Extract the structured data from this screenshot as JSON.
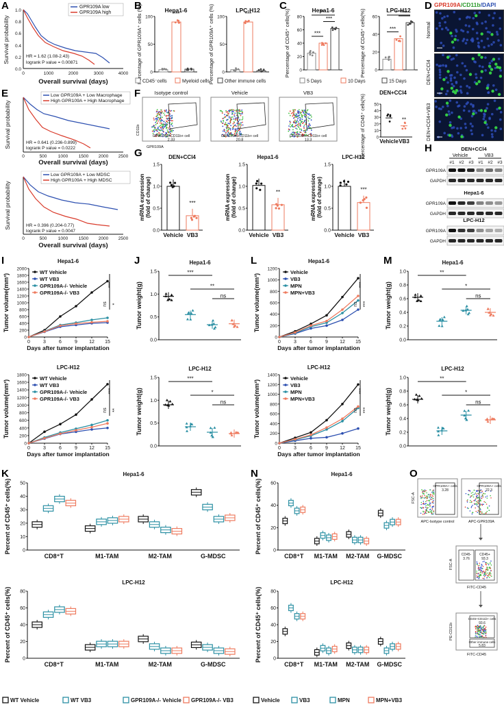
{
  "figure": {
    "panel_labels": [
      "A",
      "B",
      "C",
      "D",
      "E",
      "F",
      "G",
      "H",
      "I",
      "J",
      "L",
      "M",
      "K",
      "N",
      "O"
    ]
  },
  "panelA": {
    "legend": [
      "GPR109A low",
      "GPR109A high"
    ],
    "ylabel": "Survival probability",
    "xlabel": "Overall survival (days)",
    "hr": "HR = 1.62 (1.08-2.43)",
    "logrank": "logrank P value = 0.00871",
    "xticks": [
      "0",
      "1000",
      "2000",
      "3000",
      "4000"
    ],
    "yticks": [
      "0.0",
      "0.2",
      "0.4",
      "0.6",
      "0.8",
      "1.0"
    ]
  },
  "panelB": {
    "charts": [
      {
        "title": "Hepa1-6",
        "ylabel": "Percentage of GPR109A⁺ cells (%)",
        "values": [
          4,
          90,
          5
        ],
        "sig": "***",
        "yticks": [
          "0",
          "50",
          "100"
        ]
      },
      {
        "title": "LPC-H12",
        "ylabel": "Percentage of GPR109A⁺ cells (%)",
        "values": [
          4,
          90,
          2
        ],
        "sig": "***",
        "yticks": [
          "0",
          "50",
          "100"
        ]
      }
    ],
    "legend": [
      "CD45⁻cells",
      "Myeloid cells",
      "Other immune cells"
    ]
  },
  "panelC": {
    "charts": [
      {
        "title": "Hepa1-6",
        "ylabel": "Percentage of CD45⁺ cells(%)",
        "values": [
          25,
          40,
          62
        ],
        "sig": [
          "***",
          "***",
          "***"
        ],
        "yticks": [
          "0",
          "20",
          "40",
          "60",
          "80"
        ]
      },
      {
        "title": "LPC-H12",
        "ylabel": "Percentage of CD45⁺ cells(%)",
        "values": [
          12,
          35,
          53
        ],
        "sig": [
          "***",
          "***",
          "***"
        ],
        "yticks": [
          "0",
          "20",
          "40",
          "60"
        ]
      }
    ],
    "legend": [
      "5 Days",
      "10 Days",
      "15 Days"
    ]
  },
  "panelD": {
    "title": "GPR109A/CD11b/DAPI",
    "title_parts": [
      "GPR109A",
      "/CD11b",
      "/DAPI"
    ],
    "rows": [
      "Normal",
      "DEN+CCl4",
      "DEN+CCl4+VB3"
    ]
  },
  "panelE": {
    "top": {
      "legend": [
        "Low GPR109A + Low Macrophage",
        "High GPR109A + High Macrophage"
      ],
      "hr": "HR = 0.641 (0.236-0.899)",
      "logrank": "logrank P value = 0.0222"
    },
    "bottom": {
      "legend": [
        "Low GPR109A + Low MDSC",
        "High GPR109A + High MDSC"
      ],
      "hr": "HR = 0.396 (0.204-0.77)",
      "logrank": "logrank P value = 0.0047"
    },
    "ylabel": "Survival probability",
    "xlabel": "Overall survival (days)",
    "xticks": [
      "0",
      "500",
      "1000",
      "1500",
      "2000",
      "2500"
    ]
  },
  "panelF": {
    "plots": [
      {
        "title": "Isotype control",
        "gate": "GPR109A+CD11b+ cell",
        "value": "2.33"
      },
      {
        "title": "Vehicle",
        "gate": "GPR109A+CD11b+ cell",
        "value": "20.8"
      },
      {
        "title": "VB3",
        "gate": "GPR109A+CD11b+ cell",
        "value": "13.3"
      }
    ],
    "yaxis": "CD11b",
    "xaxis": "GPR109A",
    "bar": {
      "title": "DEN+CCl4",
      "ylabel": "Percentage of CD45⁺ cells(%)",
      "categories": [
        "Vehicle",
        "VB3"
      ],
      "values": [
        29,
        17
      ],
      "sig": "**",
      "yticks": [
        "0",
        "10",
        "20",
        "30",
        "40",
        "50"
      ]
    }
  },
  "panelG": {
    "charts": [
      {
        "title": "DEN+CCl4",
        "values": [
          1.0,
          0.33
        ],
        "sig": "***",
        "yticks": [
          "0.0",
          "0.5",
          "1.0",
          "1.5"
        ]
      },
      {
        "title": "Hepa1-6",
        "values": [
          1.02,
          0.58
        ],
        "sig": "**",
        "yticks": [
          "0.0",
          "0.5",
          "1.0",
          "1.5"
        ]
      },
      {
        "title": "LPC-H12",
        "values": [
          1.0,
          0.63
        ],
        "sig": "***",
        "yticks": [
          "0.0",
          "0.5",
          "1.0",
          "1.5"
        ]
      }
    ],
    "ylabel": "mRNA expression (fold of change)",
    "categories": [
      "Vehicle",
      "VB3"
    ]
  },
  "panelH": {
    "header": "DEN+CCl4",
    "groups": [
      "Vehicle",
      "VB3"
    ],
    "lanes": [
      "#1",
      "#2",
      "#3",
      "#1",
      "#2",
      "#3"
    ],
    "sections": [
      "",
      "Hepa1-6",
      "LPC-H12"
    ],
    "proteins": [
      "GPR109A",
      "GAPDH"
    ]
  },
  "panelI": {
    "charts": [
      {
        "title": "Hepa1-6",
        "series": [
          {
            "name": "WT Vehicle",
            "values": [
              0,
              200,
              600,
              900,
              1300,
              1630
            ]
          },
          {
            "name": "WT VB3",
            "values": [
              0,
              150,
              300,
              350,
              400,
              420
            ]
          },
          {
            "name": "GPR109A-/- Vehicle",
            "values": [
              0,
              170,
              350,
              420,
              500,
              560
            ]
          },
          {
            "name": "GPR109A-/- VB3",
            "values": [
              0,
              160,
              330,
              390,
              430,
              460
            ]
          }
        ],
        "sig": [
          "***",
          "ns",
          "*"
        ],
        "yticks": [
          "0",
          "200",
          "400",
          "600",
          "800",
          "1000",
          "1200",
          "1400",
          "1600",
          "1800",
          "2000"
        ],
        "ymax": 2000
      },
      {
        "title": "LPC-H12",
        "series": [
          {
            "name": "WT Vehicle",
            "values": [
              0,
              300,
              500,
              750,
              1150,
              1550
            ]
          },
          {
            "name": "WT VB3",
            "values": [
              0,
              120,
              240,
              300,
              360,
              400
            ]
          },
          {
            "name": "GPR109A-/- Vehicle",
            "values": [
              0,
              150,
              280,
              380,
              480,
              600
            ]
          },
          {
            "name": "GPR109A-/- VB3",
            "values": [
              0,
              130,
              250,
              340,
              420,
              520
            ]
          }
        ],
        "sig": [
          "***",
          "ns",
          "**"
        ],
        "yticks": [
          "0",
          "200",
          "400",
          "600",
          "800",
          "1000",
          "1200",
          "1400",
          "1600",
          "1800"
        ],
        "ymax": 1800
      }
    ],
    "x": [
      "0",
      "3",
      "6",
      "9",
      "12",
      "15"
    ],
    "ylabel": "Tumor volume(mm³)",
    "xlabel": "Days after tumor implantation"
  },
  "panelJ": {
    "charts": [
      {
        "title": "Hepa1-6",
        "values": [
          0.95,
          0.55,
          0.33,
          0.35
        ],
        "sig": [
          "***",
          "**",
          "ns"
        ],
        "yticks": [
          "0.0",
          "0.5",
          "1.0",
          "1.5"
        ]
      },
      {
        "title": "LPC-H12",
        "values": [
          0.9,
          0.42,
          0.3,
          0.27
        ],
        "sig": [
          "***",
          "*",
          "ns"
        ],
        "yticks": [
          "0.0",
          "0.5",
          "1.0",
          "1.5"
        ]
      }
    ],
    "ylabel": "Tumor weight(g)"
  },
  "panelL": {
    "charts": [
      {
        "title": "Hepa1-6",
        "series": [
          {
            "name": "Vehicle",
            "values": [
              0,
              100,
              230,
              380,
              700,
              1030
            ]
          },
          {
            "name": "VB3",
            "values": [
              0,
              60,
              150,
              200,
              300,
              480
            ]
          },
          {
            "name": "MPN",
            "values": [
              0,
              70,
              180,
              250,
              420,
              640
            ]
          },
          {
            "name": "MPN+VB3",
            "values": [
              0,
              80,
              200,
              280,
              480,
              720
            ]
          }
        ],
        "sig": [
          "***",
          "ns",
          "***"
        ],
        "yticks": [
          "0",
          "200",
          "400",
          "600",
          "800",
          "1000",
          "1200"
        ],
        "ymax": 1200
      },
      {
        "title": "LPC-H12",
        "series": [
          {
            "name": "Vehicle",
            "values": [
              0,
              110,
              220,
              470,
              800,
              1200
            ]
          },
          {
            "name": "VB3",
            "values": [
              0,
              50,
              100,
              120,
              200,
              300
            ]
          },
          {
            "name": "MPN",
            "values": [
              0,
              70,
              150,
              280,
              450,
              720
            ]
          },
          {
            "name": "MPN+VB3",
            "values": [
              0,
              80,
              170,
              320,
              500,
              750
            ]
          }
        ],
        "sig": [
          "***",
          "ns",
          "***"
        ],
        "yticks": [
          "0",
          "200",
          "400",
          "600",
          "800",
          "1000",
          "1200",
          "1400"
        ],
        "ymax": 1400
      }
    ],
    "x": [
      "0",
      "3",
      "6",
      "9",
      "12",
      "15"
    ],
    "ylabel": "Tumor volume(mm³)",
    "xlabel": "Days after tumor implantation"
  },
  "panelM": {
    "charts": [
      {
        "title": "Hepa1-6",
        "values": [
          0.62,
          0.27,
          0.43,
          0.4
        ],
        "sig": [
          "**",
          "*",
          "ns"
        ],
        "yticks": [
          "0.0",
          "0.2",
          "0.4",
          "0.6",
          "0.8",
          "1.0"
        ],
        "ymax": 1.0
      },
      {
        "title": "LPC-H12",
        "values": [
          0.68,
          0.22,
          0.45,
          0.38
        ],
        "sig": [
          "**",
          "*",
          "ns"
        ],
        "yticks": [
          "0.0",
          "0.2",
          "0.4",
          "0.6",
          "0.8",
          "1.0"
        ],
        "ymax": 1.0
      }
    ],
    "ylabel": "Tumor weight(g)"
  },
  "panelK": {
    "charts": [
      {
        "title": "Hepa1-6",
        "groups": [
          {
            "name": "CD8⁺T",
            "medians": [
              19,
              31,
              38,
              35
            ]
          },
          {
            "name": "M1-TAM",
            "medians": [
              16,
              21,
              22,
              23
            ]
          },
          {
            "name": "M2-TAM",
            "medians": [
              23,
              19,
              15,
              14
            ]
          },
          {
            "name": "G-MDSC",
            "medians": [
              43,
              32,
              23,
              24
            ]
          }
        ],
        "yticks": [
          "0",
          "10",
          "20",
          "30",
          "40",
          "50"
        ],
        "ymax": 50
      },
      {
        "title": "LPC-H12",
        "groups": [
          {
            "name": "CD8⁺T",
            "medians": [
              40,
              52,
              58,
              56
            ]
          },
          {
            "name": "M1-TAM",
            "medians": [
              13,
              17,
              17,
              17
            ]
          },
          {
            "name": "M2-TAM",
            "medians": [
              23,
              14,
              9,
              9
            ]
          },
          {
            "name": "G-MDSC",
            "medians": [
              16,
              13,
              9,
              8
            ]
          }
        ],
        "yticks": [
          "0",
          "20",
          "40",
          "60",
          "80"
        ],
        "ymax": 80
      }
    ],
    "ylabel": "Percent of CD45⁺ cells(%)",
    "legend": [
      "WT Vehicle",
      "WT VB3",
      "GPR109A-/- Vehicle",
      "GPR109A-/- VB3"
    ]
  },
  "panelN": {
    "charts": [
      {
        "title": "Hepa1-6",
        "groups": [
          {
            "name": "CD8⁺T",
            "medians": [
              26,
              42,
              35,
              36
            ]
          },
          {
            "name": "M1-TAM",
            "medians": [
              8,
              13,
              11,
              12
            ]
          },
          {
            "name": "M2-TAM",
            "medians": [
              14,
              9,
              9,
              8
            ]
          },
          {
            "name": "G-MDSC",
            "medians": [
              33,
              22,
              25,
              25
            ]
          }
        ],
        "yticks": [
          "0",
          "20",
          "40",
          "60"
        ],
        "ymax": 60
      },
      {
        "title": "LPC-H12",
        "groups": [
          {
            "name": "CD8⁺T",
            "medians": [
              32,
              60,
              50,
              50
            ]
          },
          {
            "name": "M1-TAM",
            "medians": [
              7,
              12,
              9,
              11
            ]
          },
          {
            "name": "M2-TAM",
            "medians": [
              15,
              10,
              10,
              10
            ]
          },
          {
            "name": "G-MDSC",
            "medians": [
              20,
              9,
              14,
              14
            ]
          }
        ],
        "yticks": [
          "0",
          "20",
          "40",
          "60",
          "80"
        ],
        "ymax": 80
      }
    ],
    "ylabel": "Percent of CD45⁺ cells(%)",
    "legend": [
      "Vehicle",
      "VB3",
      "MPN",
      "MPN+VB3"
    ]
  },
  "panelO": {
    "top": [
      {
        "gate": "GPR109A+ cells",
        "value": "3.28",
        "xlabel": "APC-Isotype control"
      },
      {
        "gate": "GPR109A+ cells",
        "value": "22.3",
        "xlabel": "APC-GPR109A"
      }
    ],
    "yaxis_top": "FSC-A",
    "mid": {
      "ylabel": "FSC-A",
      "xlabel": "FITC-CD45",
      "left_gate": "CD45-",
      "left_value": "3.76",
      "right_gate": "CD45+",
      "right_value": "93.3"
    },
    "bottom": {
      "ylabel": "PE-CD11b",
      "xlabel": "FITC-CD45",
      "top_gate": "CD45+CD11b+ cells",
      "top_value": "93.6",
      "bottom_gate": "Other immune cells",
      "bottom_value": "5.83"
    }
  },
  "colors": {
    "black": "#111111",
    "blue": "#2c4fb0",
    "red": "#d93a2a",
    "teal": "#2a8fa3",
    "salmon": "#ee7a5e",
    "grey": "#888888",
    "green": "#33cc44"
  }
}
